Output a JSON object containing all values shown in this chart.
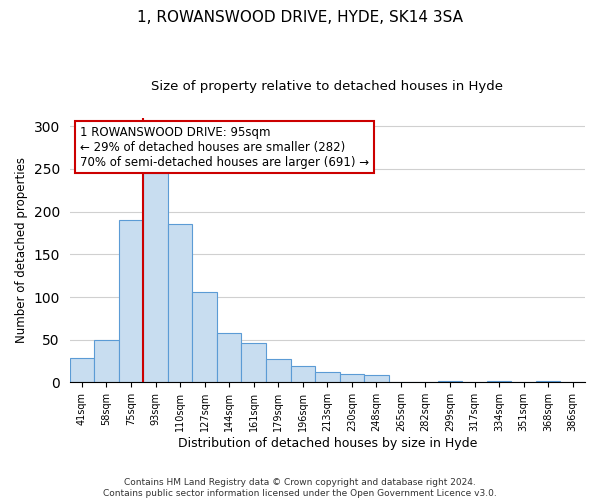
{
  "title": "1, ROWANSWOOD DRIVE, HYDE, SK14 3SA",
  "subtitle": "Size of property relative to detached houses in Hyde",
  "xlabel": "Distribution of detached houses by size in Hyde",
  "ylabel": "Number of detached properties",
  "bar_labels": [
    "41sqm",
    "58sqm",
    "75sqm",
    "93sqm",
    "110sqm",
    "127sqm",
    "144sqm",
    "161sqm",
    "179sqm",
    "196sqm",
    "213sqm",
    "230sqm",
    "248sqm",
    "265sqm",
    "282sqm",
    "299sqm",
    "317sqm",
    "334sqm",
    "351sqm",
    "368sqm",
    "386sqm"
  ],
  "bar_values": [
    28,
    50,
    190,
    245,
    185,
    106,
    58,
    46,
    27,
    19,
    12,
    10,
    9,
    0,
    0,
    1,
    0,
    1,
    0,
    1,
    0
  ],
  "bar_color": "#c8ddf0",
  "bar_edge_color": "#5b9bd5",
  "vline_color": "#cc0000",
  "annotation_text": "1 ROWANSWOOD DRIVE: 95sqm\n← 29% of detached houses are smaller (282)\n70% of semi-detached houses are larger (691) →",
  "annotation_box_edgecolor": "#cc0000",
  "annotation_box_facecolor": "#ffffff",
  "footer": "Contains HM Land Registry data © Crown copyright and database right 2024.\nContains public sector information licensed under the Open Government Licence v3.0.",
  "ylim": [
    0,
    310
  ],
  "title_fontsize": 11,
  "subtitle_fontsize": 9.5,
  "xlabel_fontsize": 9,
  "ylabel_fontsize": 8.5,
  "footer_fontsize": 6.5,
  "tick_fontsize": 7,
  "annot_fontsize": 8.5
}
